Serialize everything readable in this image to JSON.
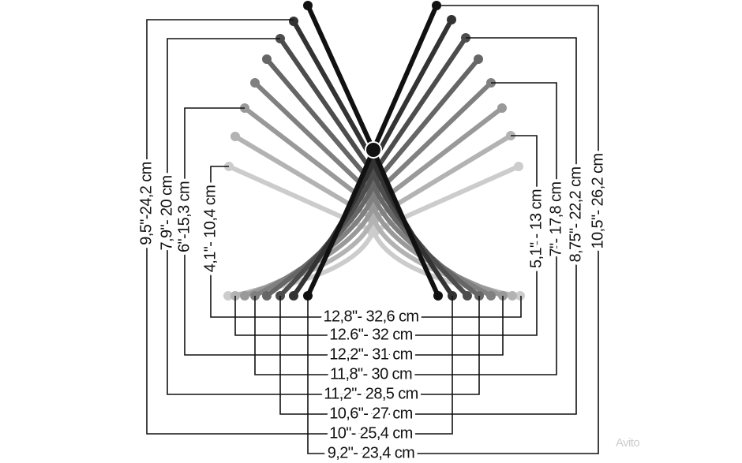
{
  "left_labels": [
    "9,5\"-24,2 cm",
    "7,9\"- 20 cm",
    "6\"-15,3 cm",
    "4,1\"- 10,4 cm"
  ],
  "right_labels": [
    "5,1\" - 13 cm",
    "7\"- 17,8 cm",
    "8,75\"- 22,2 cm",
    "10,5\"- 26,2 cm"
  ],
  "bottom_labels": [
    "12,8\"- 32,6 cm",
    "12.6\"- 32 cm",
    "12,2\"- 31 cm",
    "11,8\"- 30 cm",
    "11,2\"- 28,5 cm",
    "10,6\"- 27 cm",
    "10\"- 25,4 cm",
    "9,2\"- 23,4 cm"
  ],
  "watermark": "Avito"
}
